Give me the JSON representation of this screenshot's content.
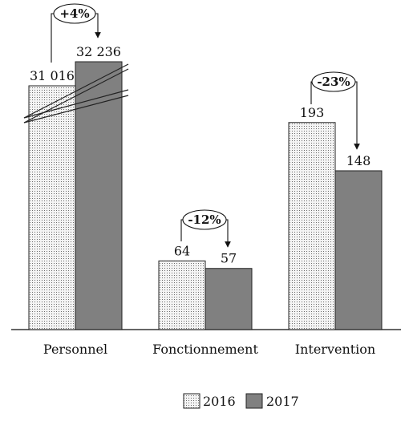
{
  "chart_data": {
    "type": "bar",
    "categories": [
      "Personnel",
      "Fonctionnement",
      "Intervention"
    ],
    "series": [
      {
        "name": "2016",
        "values": [
          31016,
          64,
          193
        ],
        "labels": [
          "31 016",
          "64",
          "193"
        ]
      },
      {
        "name": "2017",
        "values": [
          32236,
          57,
          148
        ],
        "labels": [
          "32 236",
          "57",
          "148"
        ]
      }
    ],
    "changes": [
      "+4%",
      "-12%",
      "-23%"
    ],
    "axis_break_category": "Personnel",
    "legend_position": "bottom-center",
    "colors": {
      "2016": "#f4f4f4",
      "2017": "#808080"
    },
    "patterns": {
      "2016": "dotted",
      "2017": "solid"
    },
    "title": "",
    "xlabel": "",
    "ylabel": ""
  }
}
